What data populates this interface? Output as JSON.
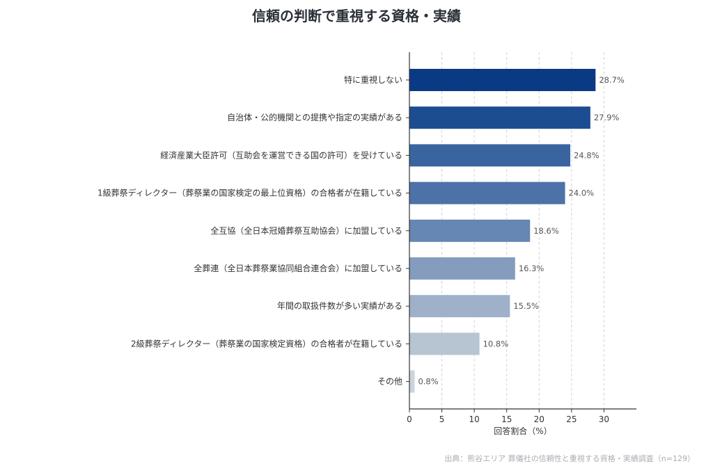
{
  "chart_data": {
    "type": "bar",
    "orientation": "horizontal",
    "title": "信頼の判断で重視する資格・実績",
    "xlabel": "回答割合（%）",
    "ylabel": "",
    "xlim": [
      0,
      35
    ],
    "xticks": [
      0,
      5,
      10,
      15,
      20,
      25,
      30
    ],
    "grid": "x-dashed",
    "categories": [
      "特に重視しない",
      "自治体・公的機関との提携や指定の実績がある",
      "経済産業大臣許可（互助会を運営できる国の許可）を受けている",
      "1級葬祭ディレクター（葬祭業の国家検定の最上位資格）の合格者が在籍している",
      "全互協（全日本冠婚葬祭互助協会）に加盟している",
      "全葬連（全日本葬祭業協同組合連合会）に加盟している",
      "年間の取扱件数が多い実績がある",
      "2級葬祭ディレクター（葬祭業の国家検定資格）の合格者が在籍している",
      "その他"
    ],
    "values": [
      28.7,
      27.9,
      24.8,
      24.0,
      18.6,
      16.3,
      15.5,
      10.8,
      0.8
    ],
    "value_labels": [
      "28.7%",
      "27.9%",
      "24.8%",
      "24.0%",
      "18.6%",
      "16.3%",
      "15.5%",
      "10.8%",
      "0.8%"
    ],
    "colors": [
      "#0a3a84",
      "#1d4d91",
      "#3a64a0",
      "#4d72a7",
      "#6686b3",
      "#849dbf",
      "#9eb1c9",
      "#b7c4d2",
      "#ccd3da"
    ]
  },
  "source": "出典：熊谷エリア 葬儀社の信頼性と重視する資格・実績調査（n=129）"
}
